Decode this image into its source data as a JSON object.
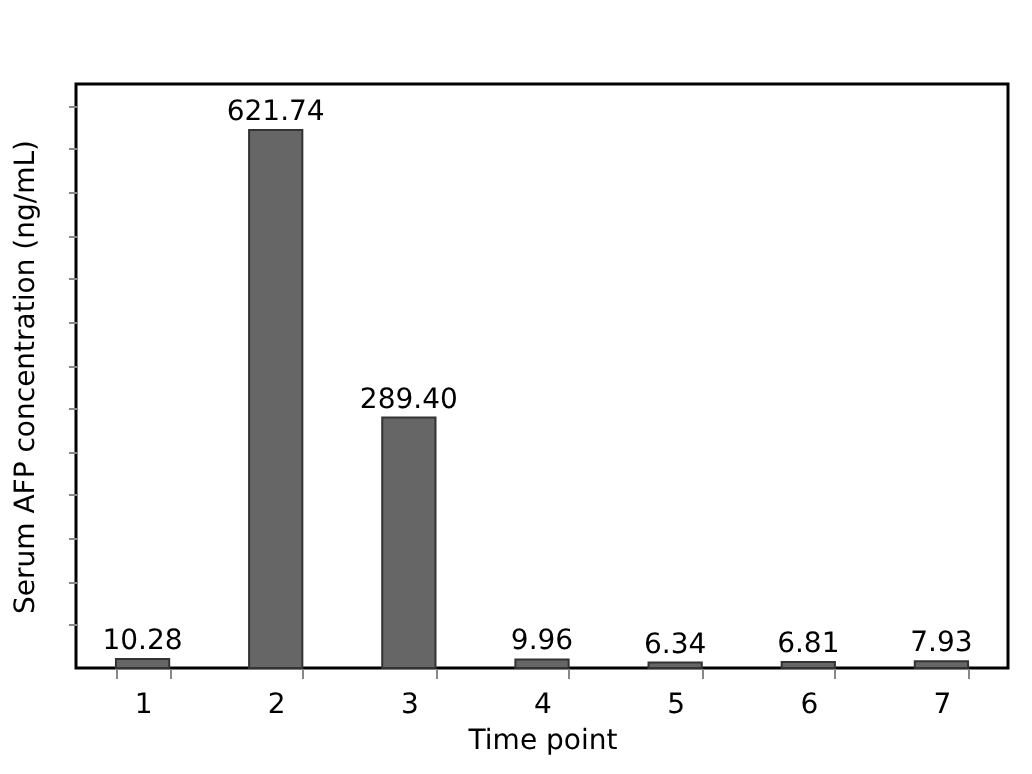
{
  "chart_data": {
    "type": "bar",
    "xlabel": "Time point",
    "ylabel": "Serum AFP concentration (ng/mL)",
    "categories": [
      "1",
      "2",
      "3",
      "4",
      "5",
      "6",
      "7"
    ],
    "values": [
      10.28,
      621.74,
      289.4,
      9.96,
      6.34,
      6.81,
      7.93
    ],
    "value_labels": [
      "10.28",
      "621.74",
      "289.40",
      "9.96",
      "6.34",
      "6.81",
      "7.93"
    ],
    "color": "#666666",
    "ylim": [
      0,
      675
    ],
    "yticks": [
      {
        "value": 50,
        "label": null
      },
      {
        "value": 100,
        "label": null
      },
      {
        "value": 150,
        "label": null
      },
      {
        "value": 200,
        "label": null
      },
      {
        "value": 250,
        "label": null
      },
      {
        "value": 300,
        "label": null
      },
      {
        "value": 350,
        "label": null
      },
      {
        "value": 400,
        "label": null
      },
      {
        "value": 450,
        "label": null
      },
      {
        "value": 500,
        "label": null
      },
      {
        "value": 550,
        "label": null
      },
      {
        "value": 600,
        "label": null
      },
      {
        "value": 650,
        "label": null
      }
    ],
    "tick_labels": "x",
    "grid": false
  }
}
